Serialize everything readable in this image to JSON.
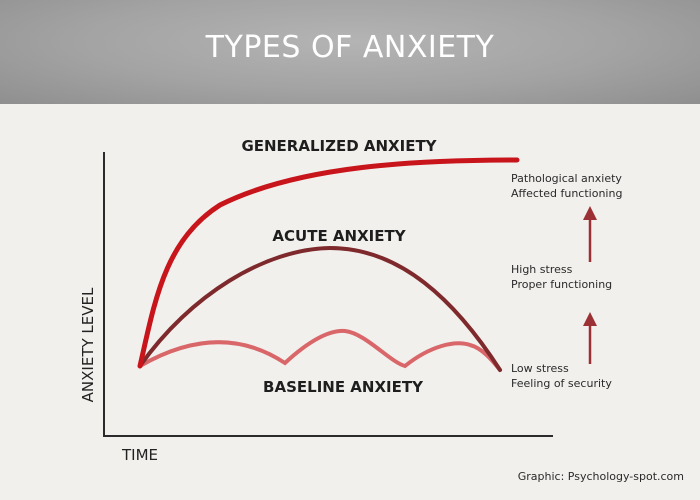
{
  "header": {
    "title": "TYPES OF ANXIETY"
  },
  "curves": {
    "generalized": {
      "label": "GENERALIZED ANXIETY",
      "color": "#c8141b"
    },
    "acute": {
      "label": "ACUTE ANXIETY",
      "color": "#7e2a2c"
    },
    "baseline": {
      "label": "BASELINE ANXIETY",
      "color": "#d9676a"
    }
  },
  "axes": {
    "y_title": "ANXIETY LEVEL",
    "x_title": "TIME"
  },
  "levels": {
    "high": {
      "line1": "Pathological anxiety",
      "line2": "Affected functioning"
    },
    "mid": {
      "line1": "High stress",
      "line2": "Proper functioning"
    },
    "low": {
      "line1": "Low stress",
      "line2": "Feeling of security"
    }
  },
  "arrow_color": "#9b3134",
  "credit": "Graphic: Psychology-spot.com"
}
